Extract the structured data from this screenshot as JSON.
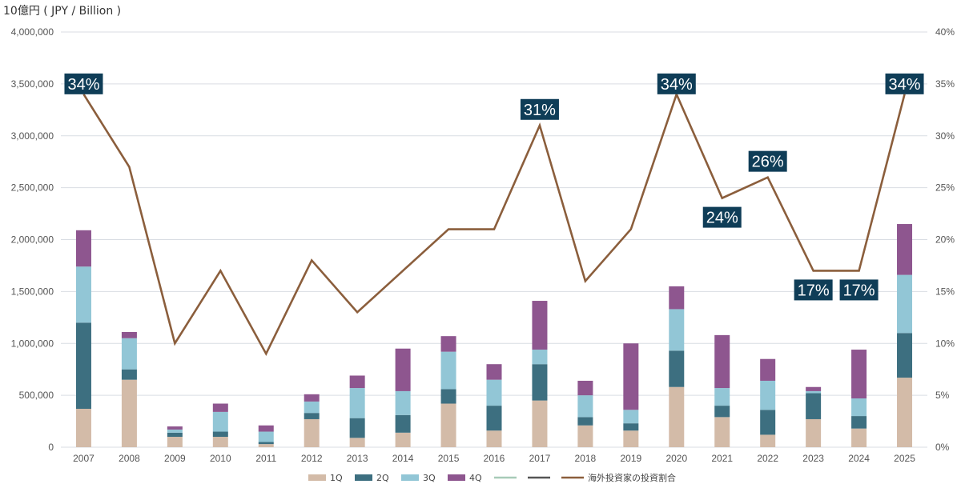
{
  "chart_data": {
    "type": "bar",
    "stacked": true,
    "y_left_label": "10億円 ( JPY / Billion )",
    "categories": [
      "2007",
      "2008",
      "2009",
      "2010",
      "2011",
      "2012",
      "2013",
      "2014",
      "2015",
      "2016",
      "2017",
      "2018",
      "2019",
      "2020",
      "2021",
      "2022",
      "2023",
      "2024",
      "2025"
    ],
    "ylim_left": [
      0,
      4000000
    ],
    "yticks_left": [
      "0",
      "500,000",
      "1,000,000",
      "1,500,000",
      "2,000,000",
      "2,500,000",
      "3,000,000",
      "3,500,000",
      "4,000,000"
    ],
    "ylim_right": [
      0,
      40
    ],
    "yticks_right": [
      "0%",
      "5%",
      "10%",
      "15%",
      "20%",
      "25%",
      "30%",
      "35%",
      "40%"
    ],
    "series": [
      {
        "name": "1Q",
        "color": "#d3bba8",
        "values": [
          370000,
          650000,
          100000,
          100000,
          30000,
          270000,
          90000,
          140000,
          420000,
          160000,
          450000,
          210000,
          160000,
          580000,
          290000,
          120000,
          270000,
          180000,
          670000
        ]
      },
      {
        "name": "2Q",
        "color": "#3d6f80",
        "values": [
          830000,
          100000,
          40000,
          50000,
          20000,
          60000,
          190000,
          170000,
          140000,
          240000,
          350000,
          80000,
          70000,
          350000,
          110000,
          240000,
          250000,
          120000,
          430000
        ]
      },
      {
        "name": "3Q",
        "color": "#92c6d6",
        "values": [
          540000,
          300000,
          30000,
          190000,
          100000,
          110000,
          290000,
          230000,
          360000,
          250000,
          140000,
          210000,
          130000,
          400000,
          170000,
          280000,
          20000,
          170000,
          560000
        ]
      },
      {
        "name": "4Q",
        "color": "#8e568f",
        "values": [
          350000,
          60000,
          30000,
          80000,
          60000,
          70000,
          120000,
          410000,
          150000,
          150000,
          470000,
          140000,
          640000,
          220000,
          510000,
          210000,
          40000,
          470000,
          490000
        ]
      }
    ],
    "legend_extra": [
      {
        "name": "",
        "color": "#a8cbb8"
      },
      {
        "name": "",
        "color": "#555555"
      }
    ],
    "line": {
      "name": "海外投資家の投資割合",
      "color": "#8b5e3c",
      "unit": "%",
      "values": [
        34,
        27,
        10,
        17,
        9,
        18,
        13,
        17,
        21,
        21,
        31,
        16,
        21,
        34,
        24,
        26,
        17,
        17,
        34
      ]
    },
    "callouts": [
      {
        "index": 0,
        "text": "34%",
        "placement": "on"
      },
      {
        "index": 10,
        "text": "31%",
        "placement": "above"
      },
      {
        "index": 13,
        "text": "34%",
        "placement": "on"
      },
      {
        "index": 14,
        "text": "24%",
        "placement": "below"
      },
      {
        "index": 15,
        "text": "26%",
        "placement": "above"
      },
      {
        "index": 16,
        "text": "17%",
        "placement": "below"
      },
      {
        "index": 17,
        "text": "17%",
        "placement": "below"
      },
      {
        "index": 18,
        "text": "34%",
        "placement": "on"
      }
    ],
    "callout_color": "#0f3d57",
    "legend_placement": "bottom-center",
    "grid": true
  }
}
